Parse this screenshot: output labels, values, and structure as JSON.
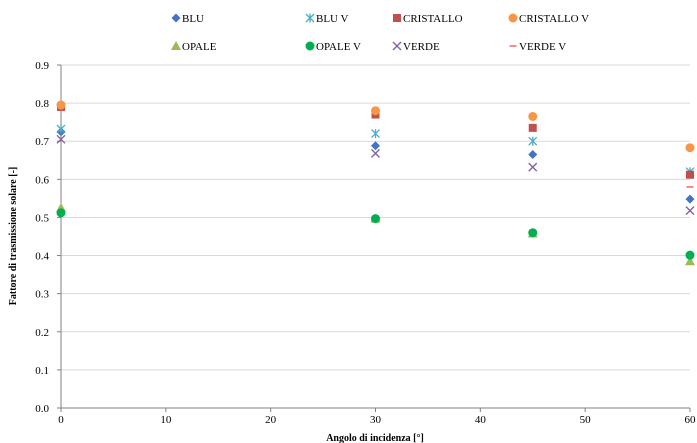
{
  "chart_data": {
    "type": "scatter",
    "xlabel": "Angolo di incidenza [°]",
    "ylabel": "Fattore di trasmissione solare [-]",
    "xlim": [
      0,
      60
    ],
    "ylim": [
      0,
      0.9
    ],
    "xticks": [
      0,
      10,
      20,
      30,
      40,
      50,
      60
    ],
    "yticks": [
      0.0,
      0.1,
      0.2,
      0.3,
      0.4,
      0.5,
      0.6,
      0.7,
      0.8,
      0.9
    ],
    "ytick_labels": [
      "0.0",
      "0.1",
      "0.2",
      "0.3",
      "0.4",
      "0.5",
      "0.6",
      "0.7",
      "0.8",
      "0.9"
    ],
    "grid": "horizontal",
    "legend_position": "top",
    "series": [
      {
        "name": "BLU",
        "marker": "diamond",
        "color": "#4472C4",
        "points": [
          [
            0,
            0.725
          ],
          [
            30,
            0.688
          ],
          [
            45,
            0.665
          ],
          [
            60,
            0.548
          ]
        ]
      },
      {
        "name": "BLU V",
        "marker": "star",
        "color": "#4BACC6",
        "points": [
          [
            0,
            0.732
          ],
          [
            30,
            0.72
          ],
          [
            45,
            0.7
          ],
          [
            60,
            0.62
          ]
        ]
      },
      {
        "name": "CRISTALLO",
        "marker": "square",
        "color": "#C0504D",
        "points": [
          [
            0,
            0.79
          ],
          [
            30,
            0.77
          ],
          [
            45,
            0.735
          ],
          [
            60,
            0.612
          ]
        ]
      },
      {
        "name": "CRISTALLO V",
        "marker": "circle",
        "color": "#F79646",
        "points": [
          [
            0,
            0.795
          ],
          [
            30,
            0.78
          ],
          [
            45,
            0.765
          ],
          [
            60,
            0.683
          ]
        ]
      },
      {
        "name": "OPALE",
        "marker": "triangle",
        "color": "#9BBB59",
        "points": [
          [
            0,
            0.525
          ],
          [
            30,
            0.497
          ],
          [
            45,
            0.458
          ],
          [
            60,
            0.385
          ]
        ]
      },
      {
        "name": "OPALE V",
        "marker": "circle",
        "color": "#00B050",
        "points": [
          [
            0,
            0.512
          ],
          [
            30,
            0.497
          ],
          [
            45,
            0.46
          ],
          [
            60,
            0.401
          ]
        ]
      },
      {
        "name": "VERDE",
        "marker": "x",
        "color": "#8064A2",
        "points": [
          [
            0,
            0.705
          ],
          [
            30,
            0.668
          ],
          [
            45,
            0.632
          ],
          [
            60,
            0.518
          ]
        ]
      },
      {
        "name": "VERDE V",
        "marker": "dash",
        "color": "#FF6A6A",
        "points": [
          [
            60,
            0.58
          ]
        ]
      }
    ]
  }
}
